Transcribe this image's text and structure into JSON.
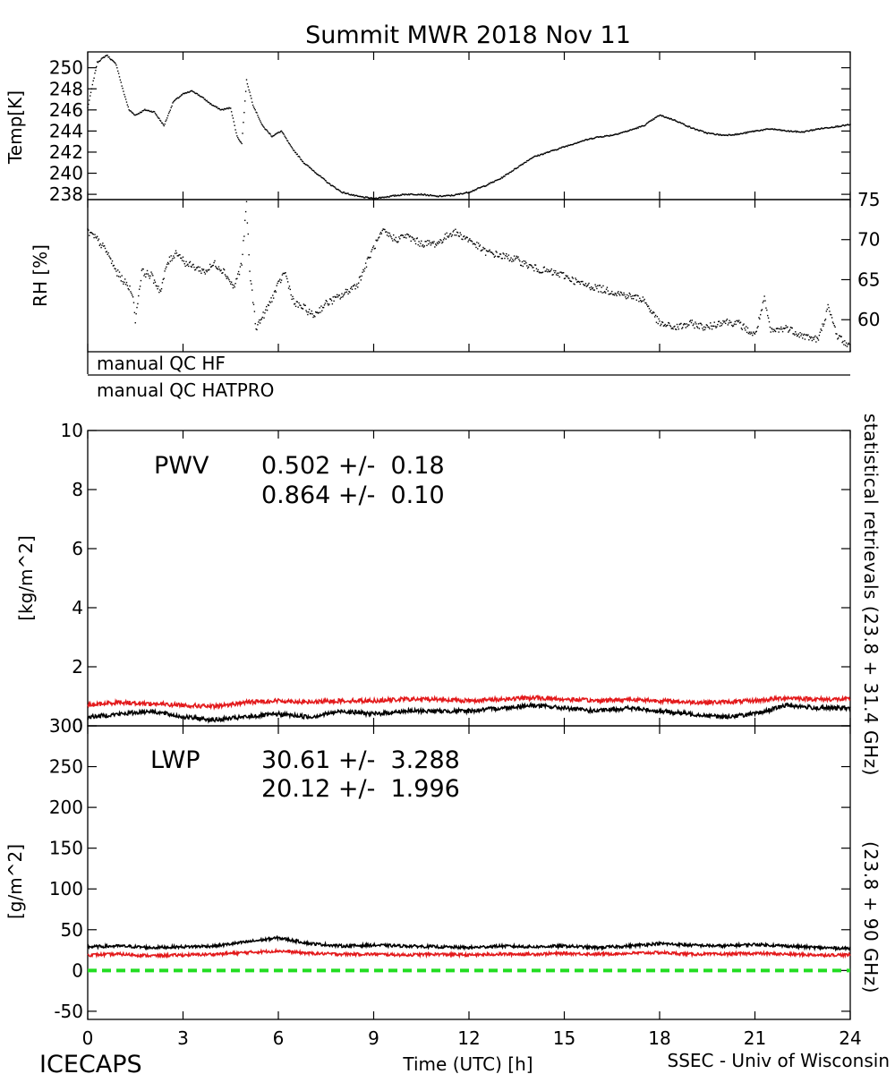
{
  "title": "Summit MWR 2018 Nov 11",
  "footer": {
    "left": "ICECAPS",
    "right": "SSEC - Univ of Wisconsin"
  },
  "x_axis": {
    "label": "Time (UTC) [h]",
    "range": [
      0,
      24
    ],
    "ticks": [
      0,
      3,
      6,
      9,
      12,
      15,
      18,
      21,
      24
    ]
  },
  "qc": {
    "hf_label": "manual QC HF",
    "hatpro_label": "manual QC HATPRO"
  },
  "right_axis_label": {
    "black": "statistical retrievals (23.8 + 31.4 GHz)",
    "red": "(23.8 + 90 GHz)"
  },
  "colors": {
    "black_series": "#000000",
    "red_series": "#e31a1c",
    "zero_line": "#22dd22"
  },
  "chart_data": [
    {
      "type": "scatter",
      "panel": "temperature",
      "ylabel": "Temp[K]",
      "ylim": [
        237.5,
        251.5
      ],
      "yticks": [
        238,
        240,
        242,
        244,
        246,
        248,
        250
      ],
      "series": [
        {
          "x": [
            0,
            0.3,
            0.6,
            0.9,
            1.1,
            1.3,
            1.5,
            1.8,
            2.1,
            2.4,
            2.7,
            3.0,
            3.3,
            3.6,
            3.9,
            4.2,
            4.5,
            4.7,
            4.85,
            5.0,
            5.2,
            5.5,
            5.8,
            6.1,
            6.4,
            6.8,
            7.2,
            7.6,
            8.0,
            8.5,
            9.0,
            9.5,
            10.0,
            10.5,
            11.0,
            11.5,
            12.0,
            12.5,
            13.0,
            13.5,
            14.0,
            14.5,
            15.0,
            15.5,
            16.0,
            16.5,
            17.0,
            17.5,
            18.0,
            18.5,
            19.0,
            19.5,
            20.0,
            20.5,
            21.0,
            21.5,
            22.0,
            22.5,
            23.0,
            23.5,
            24.0
          ],
          "y": [
            246.2,
            250.5,
            251.2,
            250.3,
            248.0,
            246.0,
            245.5,
            246.0,
            245.8,
            244.5,
            246.8,
            247.5,
            247.8,
            247.2,
            246.5,
            246.0,
            246.2,
            243.5,
            242.8,
            248.8,
            246.5,
            244.5,
            243.5,
            244.0,
            242.5,
            241.0,
            240.0,
            239.0,
            238.2,
            237.8,
            237.6,
            237.8,
            238.0,
            238.0,
            237.8,
            237.9,
            238.2,
            238.8,
            239.5,
            240.5,
            241.5,
            242.0,
            242.5,
            243.0,
            243.4,
            243.6,
            244.0,
            244.5,
            245.5,
            245.0,
            244.3,
            243.8,
            243.6,
            243.7,
            244.0,
            244.2,
            244.0,
            243.9,
            244.2,
            244.4,
            244.6
          ]
        }
      ]
    },
    {
      "type": "scatter",
      "panel": "relative_humidity",
      "ylabel": "RH [%]",
      "ylim": [
        56,
        75
      ],
      "yticks": [
        60,
        65,
        70,
        75
      ],
      "series": [
        {
          "x": [
            0,
            0.3,
            0.6,
            0.9,
            1.2,
            1.4,
            1.5,
            1.7,
            2.0,
            2.3,
            2.5,
            2.8,
            3.1,
            3.4,
            3.7,
            4.0,
            4.3,
            4.6,
            4.85,
            5.0,
            5.1,
            5.3,
            5.6,
            5.9,
            6.2,
            6.5,
            6.8,
            7.1,
            7.5,
            8.0,
            8.5,
            9.0,
            9.3,
            9.7,
            10.0,
            10.5,
            11.0,
            11.5,
            12.0,
            12.5,
            13.0,
            13.5,
            14.0,
            14.5,
            15.0,
            15.5,
            16.0,
            16.5,
            17.0,
            17.5,
            18.0,
            18.5,
            19.0,
            19.5,
            20.0,
            20.5,
            21.0,
            21.3,
            21.5,
            22.0,
            22.5,
            23.0,
            23.3,
            23.6,
            24.0
          ],
          "y": [
            71.0,
            70.0,
            68.5,
            66.0,
            64.5,
            63.5,
            60.0,
            66.0,
            65.5,
            63.5,
            67.0,
            68.5,
            67.0,
            66.5,
            66.0,
            67.0,
            66.0,
            64.0,
            67.0,
            74.5,
            66.0,
            59.0,
            61.0,
            63.5,
            66.0,
            62.0,
            61.5,
            60.5,
            62.0,
            63.0,
            64.5,
            69.0,
            71.0,
            70.0,
            70.5,
            69.5,
            69.5,
            71.0,
            70.0,
            68.5,
            68.0,
            67.5,
            66.5,
            66.0,
            65.5,
            64.5,
            64.0,
            63.5,
            63.0,
            62.5,
            59.5,
            59.0,
            59.5,
            59.0,
            59.8,
            59.5,
            58.0,
            62.5,
            58.5,
            59.0,
            58.0,
            57.5,
            61.5,
            58.0,
            56.5
          ]
        }
      ]
    },
    {
      "type": "line",
      "panel": "pwv",
      "ylabel": "[kg/m^2]",
      "ylim": [
        0,
        10
      ],
      "yticks": [
        0,
        2,
        4,
        6,
        8,
        10
      ],
      "annotation": {
        "name": "PWV",
        "stat_black": "0.502 +/-  0.18",
        "stat_red": "0.864 +/-  0.10"
      },
      "x": [
        0,
        1,
        2,
        3,
        4,
        5,
        6,
        7,
        8,
        9,
        10,
        11,
        12,
        13,
        14,
        15,
        16,
        17,
        18,
        19,
        20,
        21,
        22,
        23,
        24
      ],
      "series": [
        {
          "color": "black",
          "values": [
            0.3,
            0.4,
            0.5,
            0.3,
            0.2,
            0.3,
            0.4,
            0.3,
            0.5,
            0.4,
            0.5,
            0.5,
            0.5,
            0.6,
            0.7,
            0.6,
            0.5,
            0.6,
            0.5,
            0.4,
            0.3,
            0.4,
            0.7,
            0.6,
            0.6
          ]
        },
        {
          "color": "red",
          "values": [
            0.7,
            0.8,
            0.75,
            0.7,
            0.65,
            0.8,
            0.85,
            0.8,
            0.85,
            0.85,
            0.9,
            0.9,
            0.85,
            0.9,
            0.95,
            0.9,
            0.85,
            0.9,
            0.85,
            0.8,
            0.8,
            0.85,
            0.95,
            0.9,
            0.9
          ]
        }
      ]
    },
    {
      "type": "line",
      "panel": "lwp",
      "ylabel": "[g/m^2]",
      "ylim": [
        -60,
        300
      ],
      "yticks": [
        -50,
        0,
        50,
        100,
        150,
        200,
        250,
        300
      ],
      "annotation": {
        "name": "LWP",
        "stat_black": "30.61 +/-  3.288",
        "stat_red": "20.12 +/-  1.996"
      },
      "x": [
        0,
        1,
        2,
        3,
        4,
        5,
        6,
        7,
        8,
        9,
        10,
        11,
        12,
        13,
        14,
        15,
        16,
        17,
        18,
        19,
        20,
        21,
        22,
        23,
        24
      ],
      "series": [
        {
          "color": "black",
          "values": [
            29,
            30,
            28,
            29,
            30,
            35,
            40,
            33,
            30,
            31,
            30,
            29,
            28,
            30,
            29,
            30,
            28,
            30,
            33,
            31,
            30,
            32,
            30,
            28,
            27
          ]
        },
        {
          "color": "red",
          "values": [
            19,
            20,
            18,
            19,
            20,
            22,
            24,
            21,
            20,
            20,
            19,
            20,
            19,
            20,
            20,
            21,
            20,
            21,
            22,
            20,
            20,
            21,
            20,
            19,
            19
          ]
        },
        {
          "color": "green",
          "style": "dashed",
          "values": [
            0,
            0,
            0,
            0,
            0,
            0,
            0,
            0,
            0,
            0,
            0,
            0,
            0,
            0,
            0,
            0,
            0,
            0,
            0,
            0,
            0,
            0,
            0,
            0,
            0
          ]
        }
      ]
    }
  ]
}
